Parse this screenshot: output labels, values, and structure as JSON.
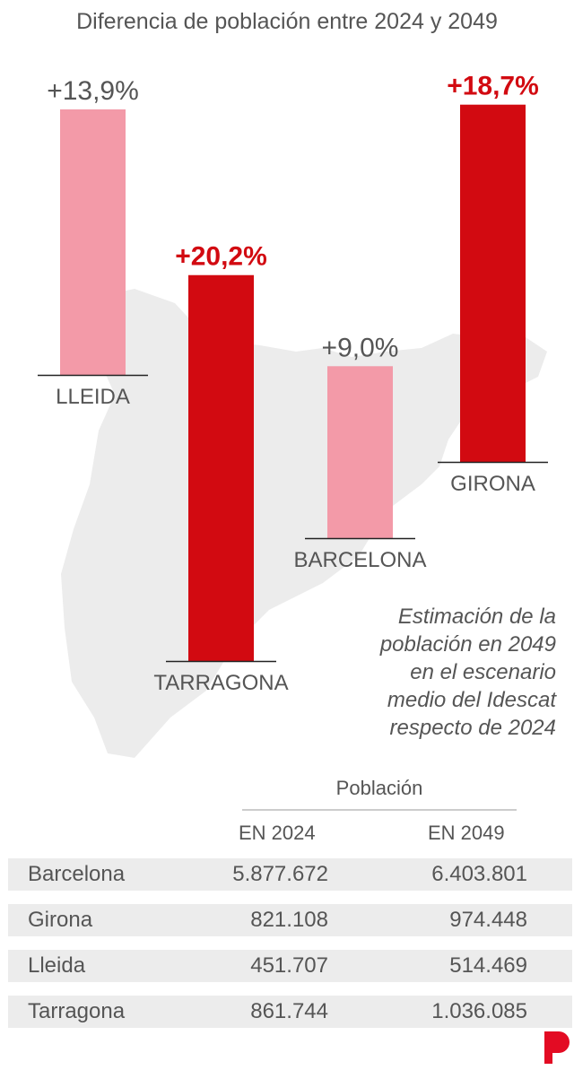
{
  "title": "Diferencia de población entre 2024 y 2049",
  "chart_data": {
    "type": "bar",
    "title": "Diferencia de población entre 2024 y 2049",
    "categories": [
      "LLEIDA",
      "TARRAGONA",
      "BARCELONA",
      "GIRONA"
    ],
    "values": [
      13.9,
      20.2,
      9.0,
      18.7
    ],
    "labels": [
      "+13,9%",
      "+20,2%",
      "+9,0%",
      "+18,7%"
    ],
    "highlight": [
      false,
      true,
      false,
      true
    ],
    "unit": "%",
    "colors": {
      "highlight": "#d20a11",
      "normal": "#f39aa8",
      "map": "#ececec"
    },
    "background": "map of Catalonia"
  },
  "note": [
    "Estimación de la",
    "población en 2049",
    "en el escenario",
    "medio del Idescat",
    "respecto de 2024"
  ],
  "table": {
    "group_header": "Población",
    "columns": [
      "EN 2024",
      "EN 2049"
    ],
    "rows": [
      {
        "name": "Barcelona",
        "y2024": "5.877.672",
        "y2049": "6.403.801"
      },
      {
        "name": "Girona",
        "y2024": "821.108",
        "y2049": "974.448"
      },
      {
        "name": "Lleida",
        "y2024": "451.707",
        "y2049": "514.469"
      },
      {
        "name": "Tarragona",
        "y2024": "861.744",
        "y2049": "1.036.085"
      }
    ]
  },
  "logo": "P",
  "colors": {
    "accent": "#d20a11",
    "row_bg": "#ececec",
    "text": "#555555"
  }
}
